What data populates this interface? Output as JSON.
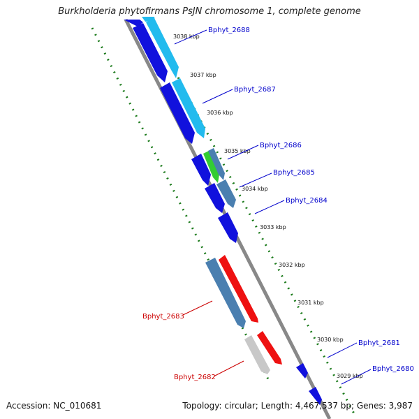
{
  "title": "Burkholderia phytofirmans PsJN chromosome 1, complete genome",
  "footer": {
    "accession": "Accession: NC_010681",
    "topology": "Topology: circular; Length: 4,467,537 bp; Genes: 3,987"
  },
  "colors": {
    "backbone": "#888888",
    "dotted_ring": "#1a7a1a",
    "blue_gene": "#1111dd",
    "cyan_gene": "#22bbee",
    "steel_gene": "#4a7fb0",
    "green_gene": "#33cc33",
    "red_gene": "#ee1111",
    "gray_gene": "#c8c8c8",
    "label_blue": "#0000cc",
    "label_red": "#cc0000"
  },
  "kbp_ticks": [
    "3038 kbp",
    "3037 kbp",
    "3036 kbp",
    "3035 kbp",
    "3034 kbp",
    "3033 kbp",
    "3032 kbp",
    "3031 kbp",
    "3030 kbp",
    "3029 kbp"
  ],
  "gene_labels": [
    "Bphyt_2688",
    "Bphyt_2687",
    "Bphyt_2686",
    "Bphyt_2685",
    "Bphyt_2684",
    "Bphyt_2683",
    "Bphyt_2682",
    "Bphyt_2681",
    "Bphyt_2680"
  ]
}
